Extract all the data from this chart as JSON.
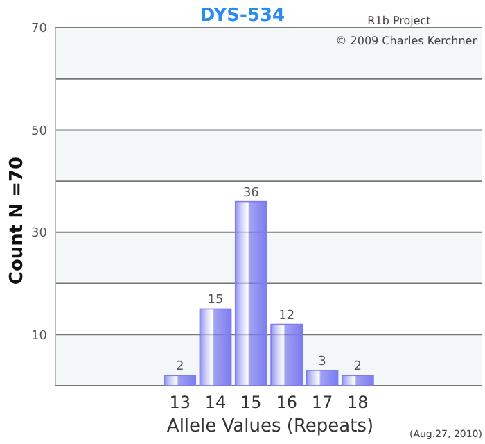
{
  "chart_data": {
    "type": "bar",
    "title": "DYS-534",
    "xlabel": "Allele Values (Repeats)",
    "ylabel": "Count N =70",
    "categories": [
      null,
      null,
      null,
      "13",
      "14",
      "15",
      "16",
      "17",
      "18",
      null,
      null,
      null
    ],
    "values": [
      null,
      null,
      null,
      2,
      15,
      36,
      12,
      3,
      2,
      null,
      null,
      null
    ],
    "color": "#7c7cf0",
    "data_labels": true,
    "ylim": [
      0,
      70
    ],
    "yticks": [
      {
        "value": 0,
        "label": null
      },
      10,
      {
        "value": 20,
        "label": null
      },
      30,
      {
        "value": 40,
        "label": null
      },
      50,
      {
        "value": 60,
        "label": null
      },
      70
    ],
    "grid": "y",
    "annotations": [
      "R1b Project",
      "© 2009 Charles Kerchner",
      "(Aug.27, 2010)"
    ]
  }
}
